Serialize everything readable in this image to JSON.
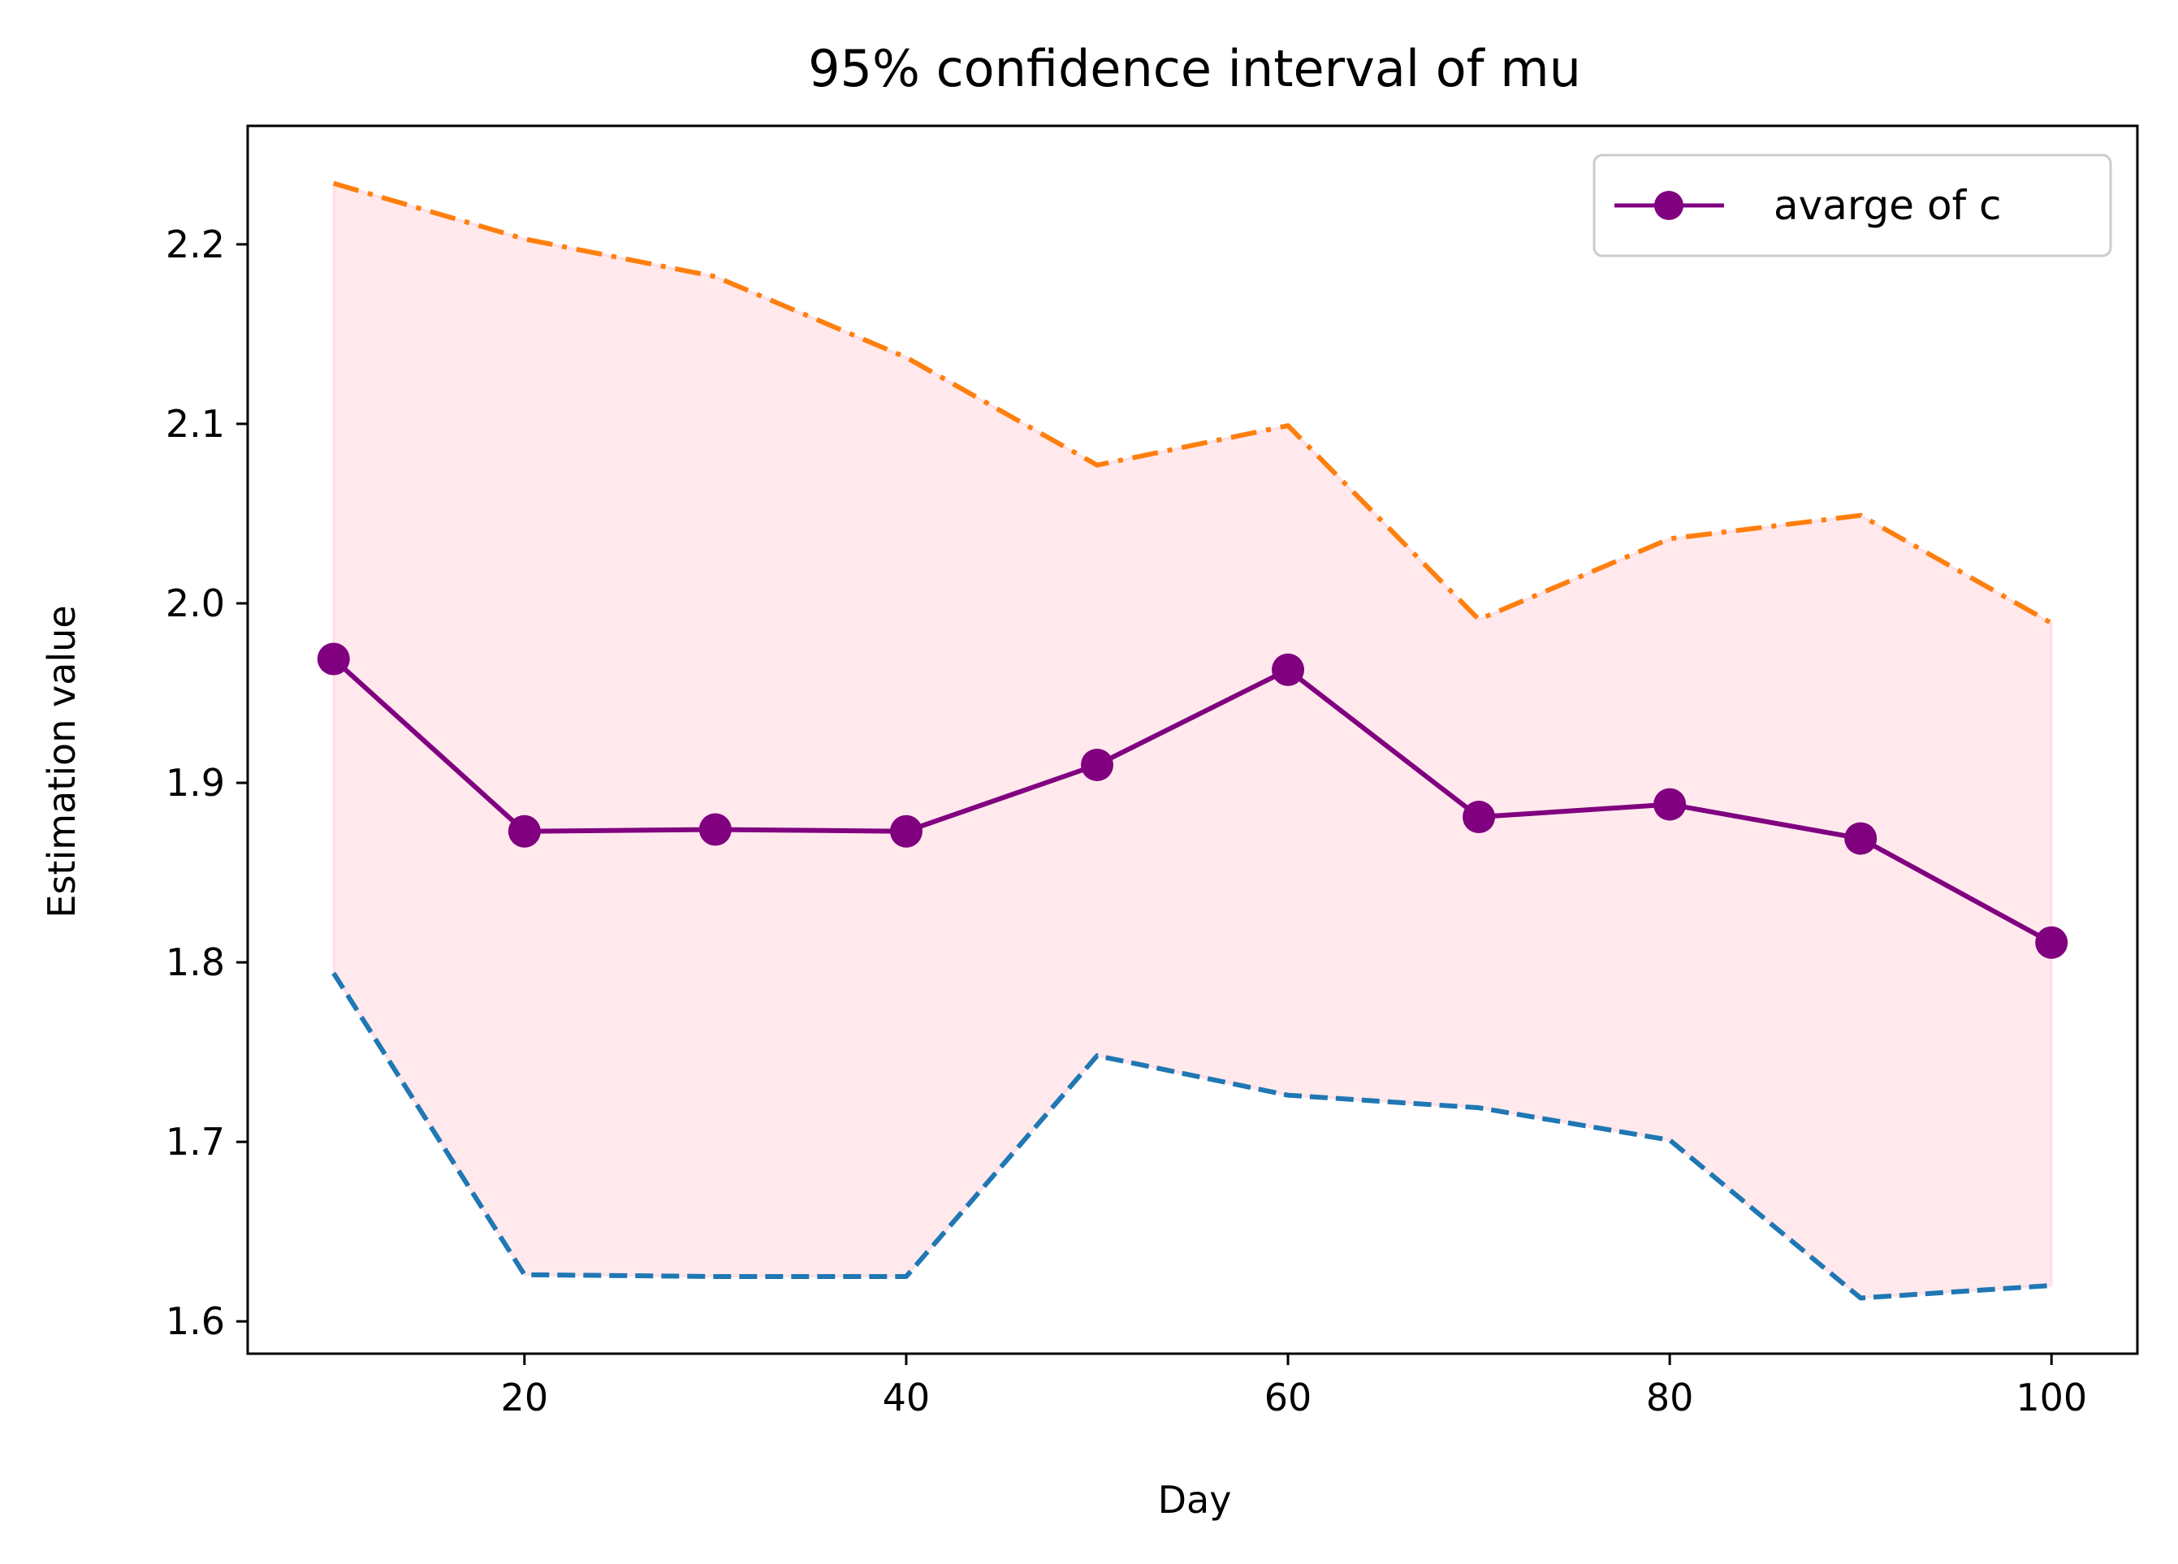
{
  "chart_data": {
    "type": "line",
    "title": "95% confidence interval of mu",
    "xlabel": "Day",
    "ylabel": "Estimation value",
    "x": [
      10,
      20,
      30,
      40,
      50,
      60,
      70,
      80,
      90,
      100
    ],
    "xlim": [
      5.5,
      104.5
    ],
    "ylim": [
      1.582,
      2.266
    ],
    "xticks": [
      20,
      40,
      60,
      80,
      100
    ],
    "yticks": [
      1.6,
      1.7,
      1.8,
      1.9,
      2.0,
      2.1,
      2.2
    ],
    "xtick_labels": [
      "20",
      "40",
      "60",
      "80",
      "100"
    ],
    "ytick_labels": [
      "1.6",
      "1.7",
      "1.8",
      "1.9",
      "2.0",
      "2.1",
      "2.2"
    ],
    "grid": false,
    "legend_position": "top-right",
    "series": [
      {
        "name": "avarge of c",
        "color": "#800080",
        "style": "solid-marker",
        "values": [
          1.969,
          1.873,
          1.874,
          1.873,
          1.91,
          1.963,
          1.881,
          1.888,
          1.869,
          1.811
        ]
      },
      {
        "color": "#ff7f0e",
        "style": "dashdot",
        "values": [
          2.234,
          2.203,
          2.182,
          2.137,
          2.077,
          2.099,
          1.991,
          2.036,
          2.049,
          1.989
        ]
      },
      {
        "color": "#1f77b4",
        "style": "dashed",
        "values": [
          1.794,
          1.626,
          1.625,
          1.625,
          1.748,
          1.726,
          1.719,
          1.701,
          1.613,
          1.62
        ]
      }
    ],
    "band": {
      "color": "#ffc0cb",
      "opacity": 0.35
    }
  }
}
